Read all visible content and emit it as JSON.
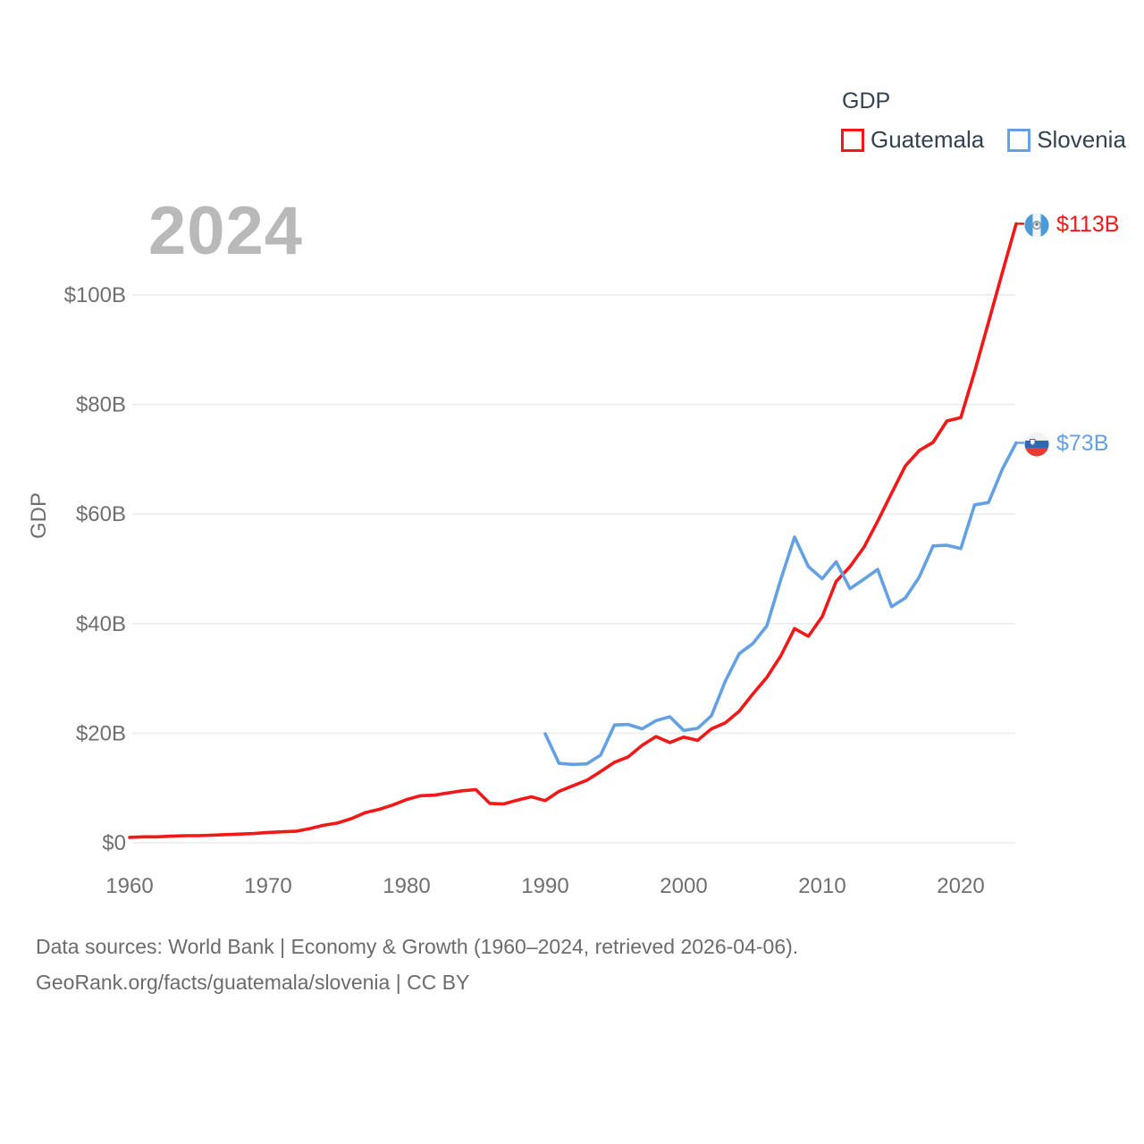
{
  "watermark": "2024",
  "legend": {
    "title": "GDP",
    "items": [
      {
        "label": "Guatemala",
        "color": "#f31717"
      },
      {
        "label": "Slovenia",
        "color": "#63a0e4"
      }
    ]
  },
  "end_labels": [
    {
      "country": "Guatemala",
      "flag_icon": "guatemala-flag-icon",
      "value": "$113B",
      "color": "#f31717"
    },
    {
      "country": "Slovenia",
      "flag_icon": "slovenia-flag-icon",
      "value": "$73B",
      "color": "#63a0e4"
    }
  ],
  "footer": {
    "line1": "Data sources: World Bank | Economy & Growth (1960–2024, retrieved 2026-04-06).",
    "line2": "GeoRank.org/facts/guatemala/slovenia | CC BY"
  },
  "chart_data": {
    "type": "line",
    "title": "GDP",
    "xlabel": "",
    "ylabel": "GDP",
    "xlim": [
      1960,
      2024
    ],
    "ylim": [
      0,
      100
    ],
    "grid": true,
    "legend_position": "top-right",
    "x_ticks": [
      1960,
      1970,
      1980,
      1990,
      2000,
      2010,
      2020
    ],
    "x_tick_labels": [
      "1960",
      "1970",
      "1980",
      "1990",
      "2000",
      "2010",
      "2020"
    ],
    "y_ticks": [
      0,
      20,
      40,
      60,
      80,
      100
    ],
    "y_tick_labels": [
      "$0",
      "$20B",
      "$40B",
      "$60B",
      "$80B",
      "$100B"
    ],
    "units": "billions of current USD",
    "series": [
      {
        "name": "Guatemala",
        "color": "#f31717",
        "start_year": 1960,
        "end_value_label": "$113B",
        "values": [
          1.0,
          1.1,
          1.1,
          1.2,
          1.3,
          1.3,
          1.4,
          1.5,
          1.6,
          1.7,
          1.9,
          2.0,
          2.1,
          2.6,
          3.2,
          3.6,
          4.4,
          5.5,
          6.1,
          6.9,
          7.9,
          8.6,
          8.7,
          9.1,
          9.5,
          9.7,
          7.2,
          7.1,
          7.8,
          8.4,
          7.7,
          9.4,
          10.4,
          11.4,
          13.0,
          14.7,
          15.7,
          17.8,
          19.4,
          18.3,
          19.3,
          18.7,
          20.8,
          21.9,
          24.0,
          27.2,
          30.2,
          34.1,
          39.1,
          37.7,
          41.3,
          47.7,
          50.4,
          53.9,
          58.7,
          63.8,
          68.8,
          71.6,
          73.1,
          77.0,
          77.6,
          86.0,
          95.0,
          104.1,
          113.0
        ]
      },
      {
        "name": "Slovenia",
        "color": "#63a0e4",
        "start_year": 1990,
        "end_value_label": "$73B",
        "values": [
          19.9,
          14.5,
          14.3,
          14.4,
          16.0,
          21.5,
          21.6,
          20.8,
          22.3,
          23.0,
          20.5,
          20.9,
          23.2,
          29.5,
          34.5,
          36.4,
          39.6,
          48.0,
          55.8,
          50.4,
          48.2,
          51.3,
          46.4,
          48.1,
          49.9,
          43.1,
          44.7,
          48.5,
          54.2,
          54.3,
          53.7,
          61.7,
          62.1,
          68.2,
          73.0
        ]
      }
    ]
  }
}
